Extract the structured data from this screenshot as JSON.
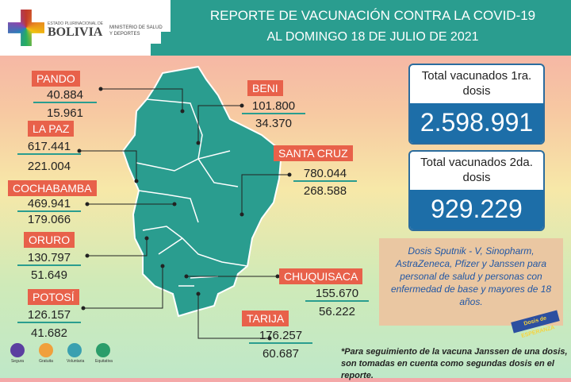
{
  "header": {
    "estado": "ESTADO PLURINACIONAL DE",
    "country": "BOLIVIA",
    "ministry": "MINISTERIO DE SALUD Y DEPORTES",
    "title_line1": "REPORTE DE VACUNACIÓN CONTRA LA COVID-19",
    "title_line2": "AL DOMINGO 18 DE JULIO DE 2021"
  },
  "departments": [
    {
      "name": "PANDO",
      "first": "40.884",
      "second": "15.961"
    },
    {
      "name": "LA PAZ",
      "first": "617.441",
      "second": "221.004"
    },
    {
      "name": "COCHABAMBA",
      "first": "469.941",
      "second": "179.066"
    },
    {
      "name": "ORURO",
      "first": "130.797",
      "second": "51.649"
    },
    {
      "name": "POTOSÍ",
      "first": "126.157",
      "second": "41.682"
    },
    {
      "name": "BENI",
      "first": "101.800",
      "second": "34.370"
    },
    {
      "name": "SANTA CRUZ",
      "first": "780.044",
      "second": "268.588"
    },
    {
      "name": "CHUQUISACA",
      "first": "155.670",
      "second": "56.222"
    },
    {
      "name": "TARIJA",
      "first": "176.257",
      "second": "60.687"
    }
  ],
  "totals": [
    {
      "label": "Total vacunados 1ra. dosis",
      "value": "2.598.991"
    },
    {
      "label": "Total vacunados 2da. dosis",
      "value": "929.229"
    }
  ],
  "info": "Dosis Sputnik - V, Sinopharm, AstraZeneca, Pfizer y Janssen para personal de salud y personas con enfermedad de base y mayores de 18 años.",
  "badge": "Dosis de ESPERANZA",
  "footnote_line1": "*Para seguimiento de la vacuna Janssen de una dosis,",
  "footnote_line2": "son tomadas en cuenta como segundas dosis en el reporte.",
  "icons": [
    {
      "label": "Segura",
      "color": "#5b3fa0"
    },
    {
      "label": "Gratuita",
      "color": "#f0a03c"
    },
    {
      "label": "Voluntaria",
      "color": "#3aa0b0"
    },
    {
      "label": "Equitativa",
      "color": "#2a9d6a"
    }
  ],
  "colors": {
    "teal": "#2a9d8f",
    "label": "#e8614a",
    "blue": "#1d6ea8"
  }
}
